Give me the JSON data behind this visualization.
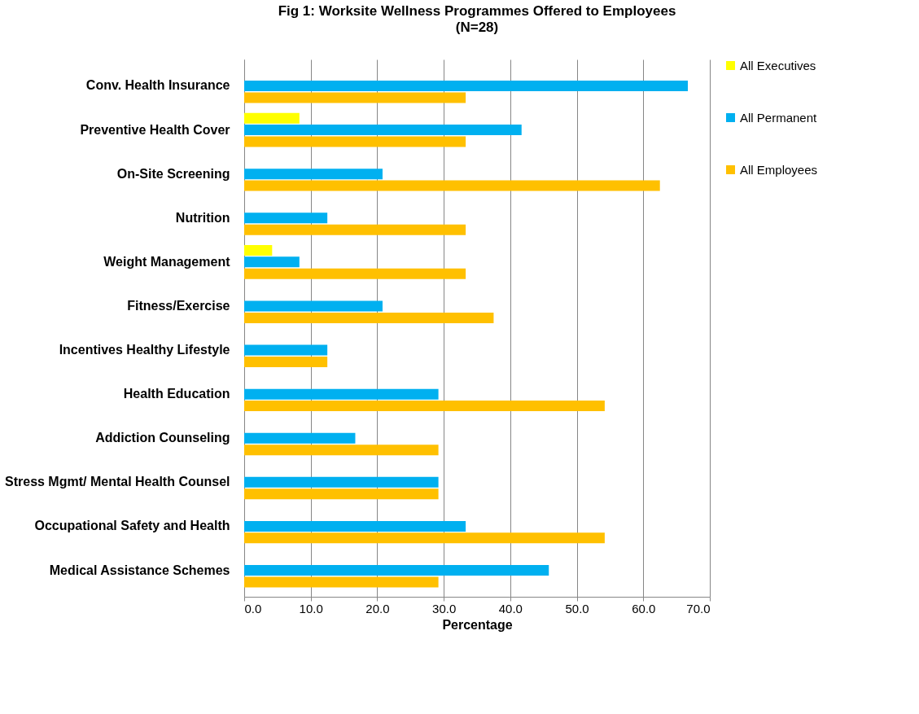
{
  "chart_data": {
    "type": "bar",
    "orientation": "horizontal",
    "title": "Fig 1:  Worksite Wellness Programmes Offered to Employees",
    "subtitle": "(N=28)",
    "xlabel": "Percentage",
    "categories": [
      "Conv. Health Insurance",
      "Preventive Health Cover",
      "On-Site Screening",
      "Nutrition",
      "Weight Management",
      "Fitness/Exercise",
      "Incentives Healthy Lifestyle",
      "Health Education",
      "Addiction Counseling",
      "Stress Mgmt/ Mental Health Counsel",
      "Occupational Safety and Health",
      "Medical Assistance Schemes"
    ],
    "series": [
      {
        "name": "All Executives",
        "color": "#ffff00",
        "values": [
          null,
          8.3,
          null,
          null,
          4.2,
          null,
          null,
          null,
          null,
          null,
          null,
          null
        ]
      },
      {
        "name": "All Permanent",
        "color": "#00b0f0",
        "values": [
          66.7,
          41.7,
          20.8,
          12.5,
          8.3,
          20.8,
          12.5,
          29.2,
          16.7,
          29.2,
          33.3,
          45.8
        ]
      },
      {
        "name": "All Employees",
        "color": "#ffc000",
        "values": [
          33.3,
          33.3,
          62.5,
          33.3,
          33.3,
          37.5,
          12.5,
          54.2,
          29.2,
          29.2,
          54.2,
          29.2
        ]
      }
    ],
    "xlim": [
      0,
      70
    ],
    "xticks": [
      {
        "value": 0,
        "label": "0.0"
      },
      {
        "value": 10,
        "label": "10.0"
      },
      {
        "value": 20,
        "label": "20.0"
      },
      {
        "value": 30,
        "label": "30.0"
      },
      {
        "value": 40,
        "label": "40.0"
      },
      {
        "value": 50,
        "label": "50.0"
      },
      {
        "value": 60,
        "label": "60.0"
      },
      {
        "value": 70,
        "label": "70.0"
      }
    ],
    "grid": "x",
    "legend": "right"
  }
}
